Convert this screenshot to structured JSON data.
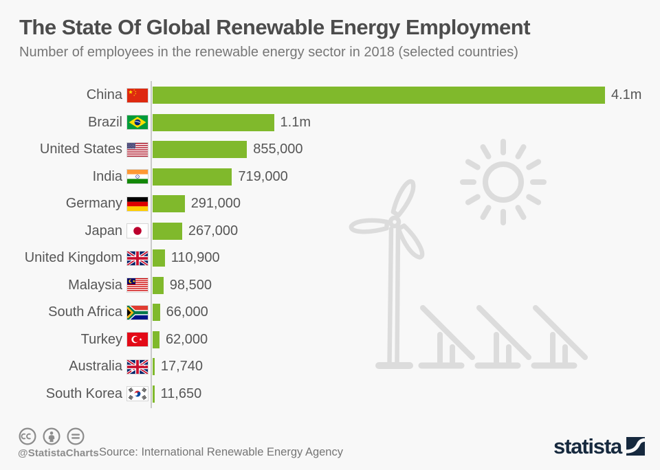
{
  "header": {
    "title": "The State Of Global Renewable Energy Employment",
    "subtitle": "Number of employees in the renewable energy sector in 2018 (selected countries)"
  },
  "chart_data": {
    "type": "bar",
    "orientation": "horizontal",
    "title": "The State Of Global Renewable Energy Employment",
    "subtitle": "Number of employees in the renewable energy sector in 2018 (selected countries)",
    "categories": [
      "China",
      "Brazil",
      "United States",
      "India",
      "Germany",
      "Japan",
      "United Kingdom",
      "Malaysia",
      "South Africa",
      "Turkey",
      "Australia",
      "South Korea"
    ],
    "values": [
      4100000,
      1100000,
      855000,
      719000,
      291000,
      267000,
      110900,
      98500,
      66000,
      62000,
      17740,
      11650
    ],
    "value_labels": [
      "4.1m",
      "1.1m",
      "855,000",
      "719,000",
      "291,000",
      "267,000",
      "110,900",
      "98,500",
      "66,000",
      "62,000",
      "17,740",
      "11,650"
    ],
    "flags": [
      "cn",
      "br",
      "us",
      "in",
      "de",
      "jp",
      "gb",
      "my",
      "za",
      "tr",
      "au",
      "kr"
    ],
    "xlim": [
      0,
      4100000
    ],
    "grid": false,
    "legend": false,
    "bar_color": "#80b92c"
  },
  "watermark": {
    "icons": [
      "sun-icon",
      "wind-turbine-icon",
      "solar-panels-icon"
    ],
    "color": "#dcdcdc"
  },
  "footer": {
    "license_icons": [
      "cc-icon",
      "attribution-icon",
      "equals-icon"
    ],
    "handle": "@StatistaCharts",
    "source": "Source: International Renewable Energy Agency",
    "brand": "statista",
    "brand_color": "#16293e"
  }
}
